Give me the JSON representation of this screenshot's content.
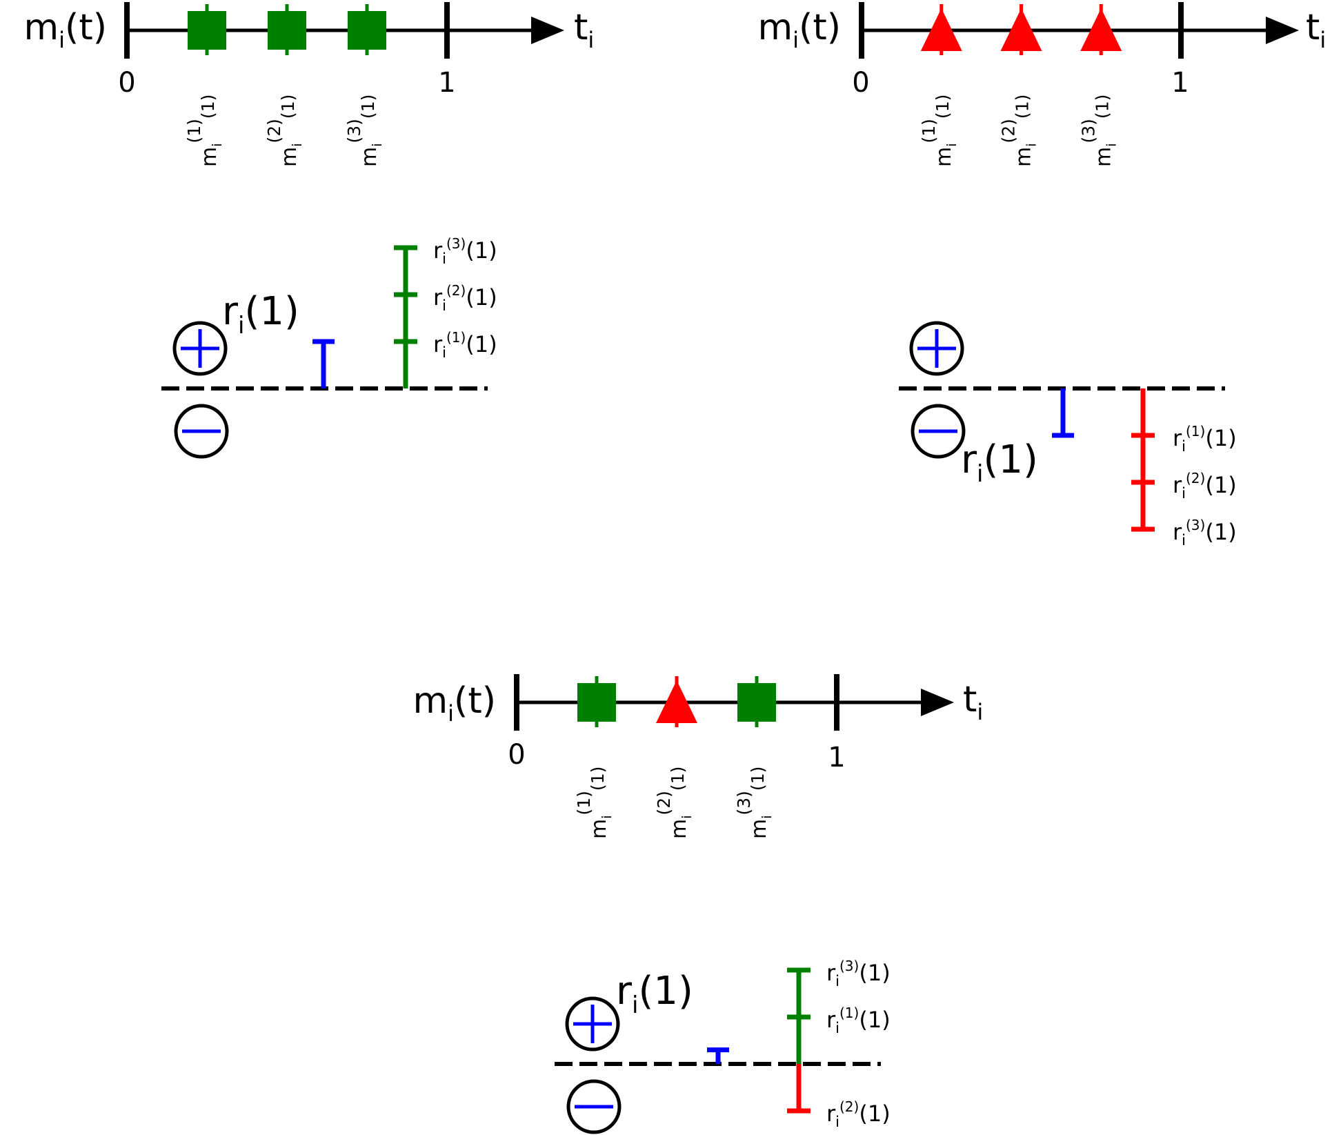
{
  "colors": {
    "axis": "#000000",
    "blue": "#0000ff",
    "green": "#008000",
    "red": "#ff0000"
  },
  "symbols": {
    "positive_sign": "plus-in-circle",
    "negative_sign": "minus-in-circle"
  },
  "labels": {
    "mt_base": "m",
    "mt_sub": "i",
    "mt_arg": "(t)",
    "t_base": "t",
    "t_sub": "i",
    "tick_zero": "0",
    "tick_one": "1",
    "ri_base": "r",
    "ri_sub": "i",
    "ri_arg": "(1)"
  },
  "panels": {
    "top_left": {
      "markers": [
        {
          "kind": "square",
          "color": "green",
          "position": 0.25,
          "sup": "(1)",
          "arg": "(1)"
        },
        {
          "kind": "square",
          "color": "green",
          "position": 0.5,
          "sup": "(2)",
          "arg": "(1)"
        },
        {
          "kind": "square",
          "color": "green",
          "position": 0.75,
          "sup": "(3)",
          "arg": "(1)"
        }
      ],
      "total": 1,
      "components": [
        {
          "sup": "(1)",
          "arg": "(1)",
          "from": 0,
          "to": 1
        },
        {
          "sup": "(2)",
          "arg": "(1)",
          "from": 1,
          "to": 2
        },
        {
          "sup": "(3)",
          "arg": "(1)",
          "from": 2,
          "to": 3
        }
      ]
    },
    "top_right": {
      "markers": [
        {
          "kind": "triangle",
          "color": "red",
          "position": 0.25,
          "sup": "(1)",
          "arg": "(1)"
        },
        {
          "kind": "triangle",
          "color": "red",
          "position": 0.5,
          "sup": "(2)",
          "arg": "(1)"
        },
        {
          "kind": "triangle",
          "color": "red",
          "position": 0.75,
          "sup": "(3)",
          "arg": "(1)"
        }
      ],
      "total": -1,
      "components": [
        {
          "sup": "(1)",
          "arg": "(1)",
          "from": 0,
          "to": -1
        },
        {
          "sup": "(2)",
          "arg": "(1)",
          "from": -1,
          "to": -2
        },
        {
          "sup": "(3)",
          "arg": "(1)",
          "from": -2,
          "to": -3
        }
      ]
    },
    "bottom": {
      "markers": [
        {
          "kind": "square",
          "color": "green",
          "position": 0.25,
          "sup": "(1)",
          "arg": "(1)"
        },
        {
          "kind": "triangle",
          "color": "red",
          "position": 0.5,
          "sup": "(2)",
          "arg": "(1)"
        },
        {
          "kind": "square",
          "color": "green",
          "position": 0.75,
          "sup": "(3)",
          "arg": "(1)"
        }
      ],
      "total": 0.3,
      "components": [
        {
          "sup": "(1)",
          "arg": "(1)",
          "color": "green",
          "from": 0,
          "to": 1
        },
        {
          "sup": "(3)",
          "arg": "(1)",
          "color": "green",
          "from": 1,
          "to": 2
        },
        {
          "sup": "(2)",
          "arg": "(1)",
          "color": "red",
          "from": 0,
          "to": -1
        }
      ]
    }
  }
}
